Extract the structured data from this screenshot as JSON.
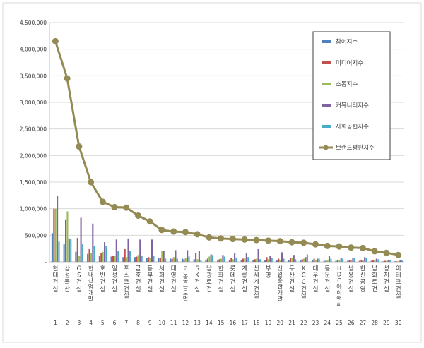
{
  "chart_data": {
    "type": "bar",
    "title": "",
    "xlabel": "",
    "ylabel": "",
    "ylim": [
      0,
      4500000
    ],
    "y_ticks": [
      "-",
      "500,000",
      "1,000,000",
      "1,500,000",
      "2,000,000",
      "2,500,000",
      "3,000,000",
      "3,500,000",
      "4,000,000",
      "4,500,000"
    ],
    "grid": true,
    "legend_position": "top-right",
    "ranks": [
      "1",
      "2",
      "3",
      "4",
      "5",
      "6",
      "7",
      "8",
      "9",
      "10",
      "11",
      "12",
      "13",
      "14",
      "15",
      "16",
      "17",
      "18",
      "19",
      "20",
      "21",
      "22",
      "23",
      "24",
      "25",
      "26",
      "27",
      "28",
      "29",
      "30"
    ],
    "categories": [
      "현대건설",
      "삼성물산",
      "GS건설",
      "현대산업개발",
      "호반건설",
      "일성건설",
      "포스코건설",
      "금호건설",
      "동부건설",
      "서희건설",
      "태영건설",
      "코오롱글로벌",
      "SK건설",
      "남광토건",
      "한화건설",
      "롯데건설",
      "계룡건설",
      "신세계건설",
      "부영",
      "신원종합개발",
      "두산건설",
      "KCC건설",
      "대우건설",
      "동문건설",
      "HDC아이앤씨",
      "쌍용건설",
      "한신공영",
      "남화토건",
      "성지건설",
      "이테크건설"
    ],
    "series": [
      {
        "name": "참여지수",
        "color": "#4f81bd",
        "kind": "bar",
        "values": [
          540000,
          330000,
          190000,
          150000,
          110000,
          100000,
          90000,
          90000,
          80000,
          70000,
          60000,
          60000,
          50000,
          40000,
          40000,
          40000,
          40000,
          40000,
          30000,
          30000,
          30000,
          30000,
          30000,
          20000,
          20000,
          20000,
          20000,
          20000,
          10000,
          10000
        ]
      },
      {
        "name": "미디어지수",
        "color": "#c0504d",
        "kind": "bar",
        "values": [
          1000000,
          800000,
          450000,
          240000,
          160000,
          120000,
          240000,
          100000,
          90000,
          80000,
          60000,
          50000,
          160000,
          60000,
          50000,
          70000,
          60000,
          50000,
          90000,
          60000,
          70000,
          50000,
          60000,
          20000,
          40000,
          40000,
          40000,
          30000,
          20000,
          10000
        ]
      },
      {
        "name": "소통지수",
        "color": "#9bbb59",
        "kind": "bar",
        "values": [
          1000000,
          950000,
          120000,
          160000,
          190000,
          110000,
          90000,
          130000,
          70000,
          200000,
          90000,
          80000,
          50000,
          100000,
          60000,
          50000,
          70000,
          60000,
          50000,
          30000,
          70000,
          60000,
          40000,
          30000,
          30000,
          30000,
          30000,
          30000,
          20000,
          10000
        ]
      },
      {
        "name": "커뮤니티지수",
        "color": "#8064a2",
        "kind": "bar",
        "values": [
          1240000,
          440000,
          830000,
          720000,
          370000,
          420000,
          440000,
          420000,
          420000,
          200000,
          220000,
          220000,
          210000,
          140000,
          130000,
          170000,
          170000,
          240000,
          110000,
          180000,
          130000,
          90000,
          60000,
          110000,
          80000,
          80000,
          90000,
          60000,
          30000,
          30000
        ]
      },
      {
        "name": "사회공헌지수",
        "color": "#4bacc6",
        "kind": "bar",
        "values": [
          380000,
          430000,
          330000,
          300000,
          300000,
          210000,
          210000,
          120000,
          110000,
          60000,
          60000,
          100000,
          40000,
          130000,
          100000,
          80000,
          90000,
          50000,
          70000,
          60000,
          50000,
          140000,
          60000,
          60000,
          60000,
          70000,
          70000,
          50000,
          40000,
          30000
        ]
      },
      {
        "name": "브랜드평판지수",
        "color": "#948a54",
        "kind": "line",
        "values": [
          4150000,
          3450000,
          2170000,
          1500000,
          1130000,
          1030000,
          1020000,
          870000,
          760000,
          600000,
          570000,
          560000,
          520000,
          460000,
          440000,
          430000,
          420000,
          410000,
          400000,
          390000,
          370000,
          360000,
          330000,
          300000,
          290000,
          270000,
          260000,
          200000,
          170000,
          130000
        ]
      }
    ]
  }
}
